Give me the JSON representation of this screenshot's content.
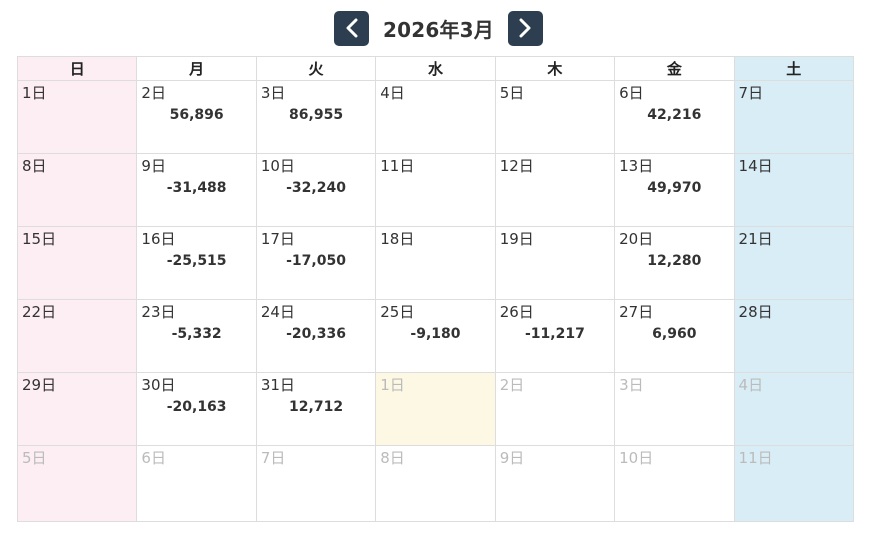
{
  "header": {
    "title": "2026年3月",
    "prev_icon": "chevron-left-icon",
    "next_icon": "chevron-right-icon",
    "button_color": "#2c3e50"
  },
  "weekdays": [
    "日",
    "月",
    "火",
    "水",
    "木",
    "金",
    "土"
  ],
  "colors": {
    "sunday": "#fdeef3",
    "saturday": "#d9edf7",
    "today": "#fcf8e3",
    "other_month_text": "#bbbbbb"
  },
  "weeks": [
    [
      {
        "day": "1日",
        "amount": ""
      },
      {
        "day": "2日",
        "amount": "56,896"
      },
      {
        "day": "3日",
        "amount": "86,955"
      },
      {
        "day": "4日",
        "amount": ""
      },
      {
        "day": "5日",
        "amount": ""
      },
      {
        "day": "6日",
        "amount": "42,216"
      },
      {
        "day": "7日",
        "amount": ""
      }
    ],
    [
      {
        "day": "8日",
        "amount": ""
      },
      {
        "day": "9日",
        "amount": "-31,488"
      },
      {
        "day": "10日",
        "amount": "-32,240"
      },
      {
        "day": "11日",
        "amount": ""
      },
      {
        "day": "12日",
        "amount": ""
      },
      {
        "day": "13日",
        "amount": "49,970"
      },
      {
        "day": "14日",
        "amount": ""
      }
    ],
    [
      {
        "day": "15日",
        "amount": ""
      },
      {
        "day": "16日",
        "amount": "-25,515"
      },
      {
        "day": "17日",
        "amount": "-17,050"
      },
      {
        "day": "18日",
        "amount": ""
      },
      {
        "day": "19日",
        "amount": ""
      },
      {
        "day": "20日",
        "amount": "12,280"
      },
      {
        "day": "21日",
        "amount": ""
      }
    ],
    [
      {
        "day": "22日",
        "amount": ""
      },
      {
        "day": "23日",
        "amount": "-5,332"
      },
      {
        "day": "24日",
        "amount": "-20,336"
      },
      {
        "day": "25日",
        "amount": "-9,180"
      },
      {
        "day": "26日",
        "amount": "-11,217"
      },
      {
        "day": "27日",
        "amount": "6,960"
      },
      {
        "day": "28日",
        "amount": ""
      }
    ],
    [
      {
        "day": "29日",
        "amount": ""
      },
      {
        "day": "30日",
        "amount": "-20,163"
      },
      {
        "day": "31日",
        "amount": "12,712"
      },
      {
        "day": "1日",
        "amount": ""
      },
      {
        "day": "2日",
        "amount": ""
      },
      {
        "day": "3日",
        "amount": ""
      },
      {
        "day": "4日",
        "amount": ""
      }
    ],
    [
      {
        "day": "5日",
        "amount": ""
      },
      {
        "day": "6日",
        "amount": ""
      },
      {
        "day": "7日",
        "amount": ""
      },
      {
        "day": "8日",
        "amount": ""
      },
      {
        "day": "9日",
        "amount": ""
      },
      {
        "day": "10日",
        "amount": ""
      },
      {
        "day": "11日",
        "amount": ""
      }
    ]
  ]
}
